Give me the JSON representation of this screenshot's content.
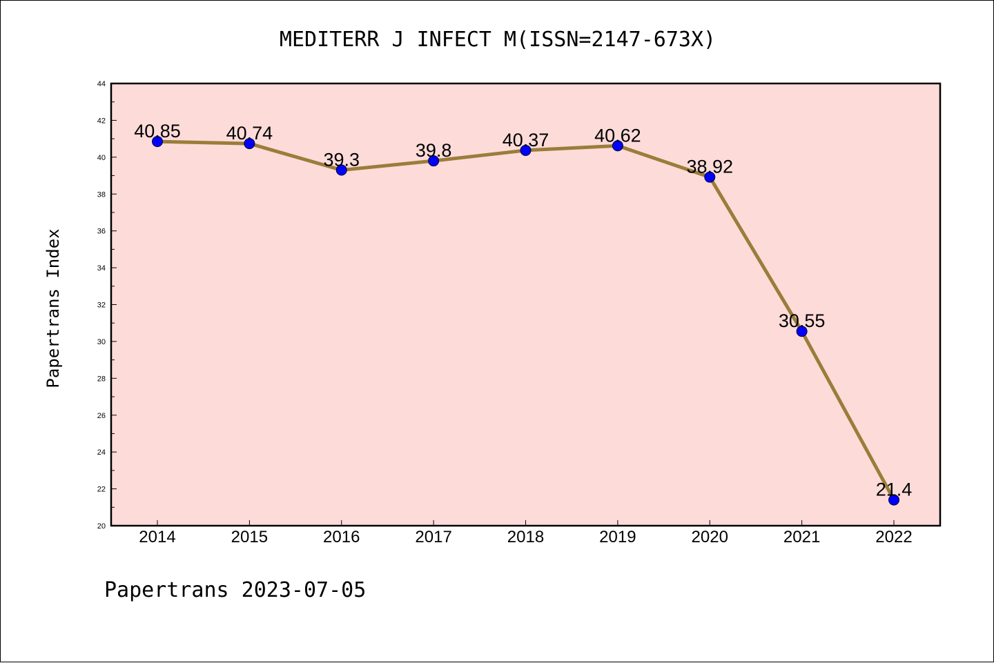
{
  "chart_data": {
    "type": "line",
    "title": "MEDITERR J INFECT M(ISSN=2147-673X)",
    "ylabel": "Papertrans Index",
    "xlabel": "",
    "categories": [
      "2014",
      "2015",
      "2016",
      "2017",
      "2018",
      "2019",
      "2020",
      "2021",
      "2022"
    ],
    "values": [
      40.85,
      40.74,
      39.3,
      39.8,
      40.37,
      40.62,
      38.92,
      30.55,
      21.4
    ],
    "data_labels": [
      "40.85",
      "40.74",
      "39.3",
      "39.8",
      "40.37",
      "40.62",
      "38.92",
      "30.55",
      "21.4"
    ],
    "ylim": [
      20,
      44
    ],
    "yticks": [
      "20",
      "22",
      "24",
      "26",
      "28",
      "30",
      "32",
      "34",
      "36",
      "38",
      "40",
      "42",
      "44"
    ],
    "grid": false,
    "colors": {
      "plot_background": "#fddbd9",
      "line": "#9a7d3a",
      "marker": "#0000ff"
    }
  },
  "footer": "Papertrans 2023-07-05"
}
